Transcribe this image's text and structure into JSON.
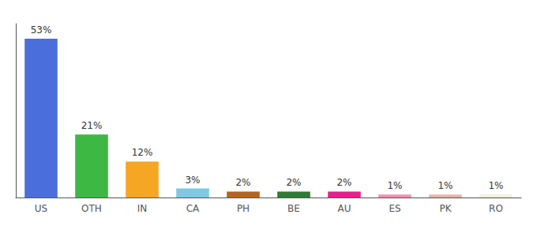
{
  "chart_data": {
    "type": "bar",
    "categories": [
      "US",
      "OTH",
      "IN",
      "CA",
      "PH",
      "BE",
      "AU",
      "ES",
      "PK",
      "RO"
    ],
    "values": [
      53,
      21,
      12,
      3,
      2,
      2,
      2,
      1,
      1,
      1
    ],
    "value_labels": [
      "53%",
      "21%",
      "12%",
      "3%",
      "2%",
      "2%",
      "2%",
      "1%",
      "1%",
      "1%"
    ],
    "colors": [
      "#4a6fdc",
      "#3cb843",
      "#f5a623",
      "#7ec8e3",
      "#b5651d",
      "#2e7d32",
      "#e91e8c",
      "#f48fb1",
      "#e8b4a8",
      "#f5f0dc"
    ],
    "ylim": [
      0,
      58
    ],
    "data_labels": true,
    "tick_labels": "x",
    "grid": false
  }
}
